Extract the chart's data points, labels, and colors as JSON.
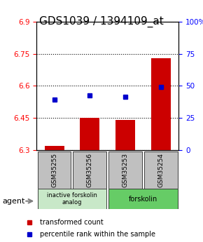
{
  "title": "GDS1039 / 1394109_at",
  "samples": [
    "GSM35255",
    "GSM35256",
    "GSM35253",
    "GSM35254"
  ],
  "bar_values": [
    6.32,
    6.45,
    6.44,
    6.73
  ],
  "bar_base": 6.3,
  "percentile_values": [
    6.535,
    6.555,
    6.55,
    6.595
  ],
  "ylim_left": [
    6.3,
    6.9
  ],
  "ylim_right": [
    0,
    100
  ],
  "yticks_left": [
    6.3,
    6.45,
    6.6,
    6.75,
    6.9
  ],
  "yticks_right": [
    0,
    25,
    50,
    75,
    100
  ],
  "ytick_labels_left": [
    "6.3",
    "6.45",
    "6.6",
    "6.75",
    "6.9"
  ],
  "ytick_labels_right": [
    "0",
    "25",
    "50",
    "75",
    "100%"
  ],
  "bar_color": "#cc0000",
  "percentile_color": "#0000cc",
  "group1_label": "inactive forskolin\nanalog",
  "group2_label": "forskolin",
  "agent_label": "agent",
  "legend_items": [
    "transformed count",
    "percentile rank within the sample"
  ],
  "title_fontsize": 11,
  "tick_fontsize": 7.5,
  "legend_fontsize": 7,
  "bar_width": 0.55,
  "group1_color": "#c8e8c8",
  "group2_color": "#66cc66",
  "sample_box_color": "#c0c0c0"
}
